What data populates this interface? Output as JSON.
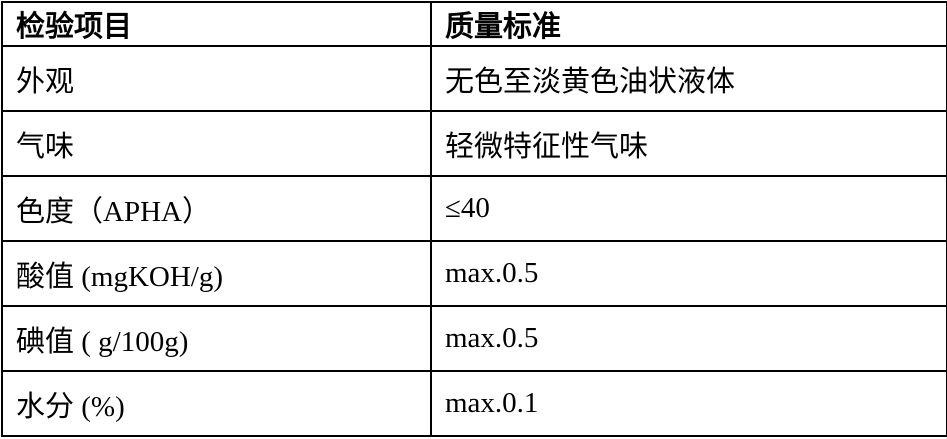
{
  "table": {
    "columns": {
      "item": "检验项目",
      "standard": "质量标准"
    },
    "rows": [
      {
        "item": "外观",
        "standard": "无色至淡黄色油状液体"
      },
      {
        "item": "气味",
        "standard": "轻微特征性气味"
      },
      {
        "item": "色度（APHA）",
        "standard": "≤40"
      },
      {
        "item": "酸值  (mgKOH/g)",
        "standard": "max.0.5"
      },
      {
        "item": "碘值  ( g/100g)",
        "standard": "max.0.5"
      },
      {
        "item": "水分  (%)",
        "standard": "max.0.1"
      }
    ]
  }
}
